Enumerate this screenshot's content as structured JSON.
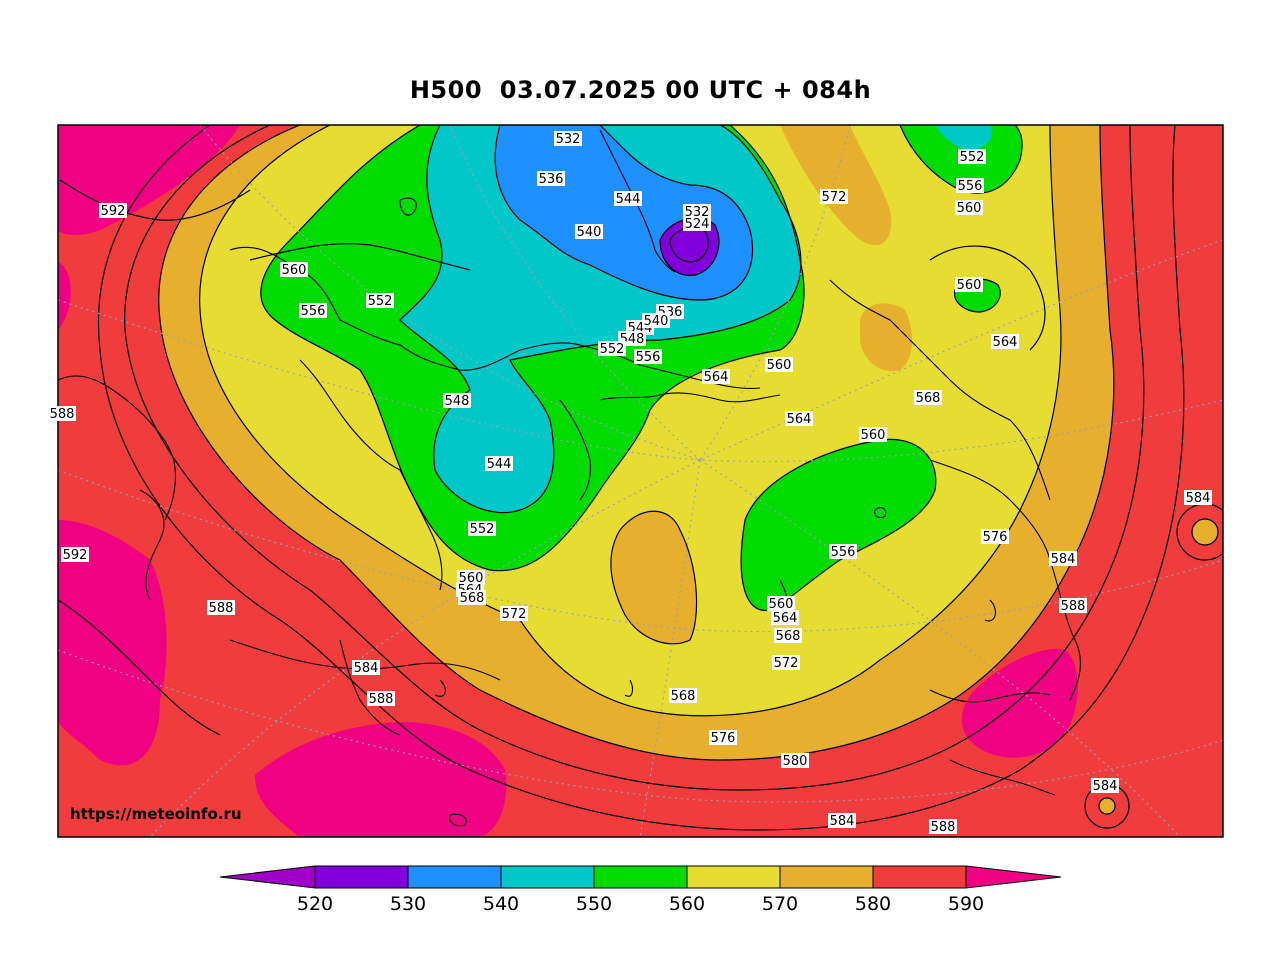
{
  "title": "H500  03.07.2025 00 UTC + 084h",
  "watermark": "https://meteoinfo.ru",
  "colorbar": {
    "ticks": [
      "520",
      "530",
      "540",
      "550",
      "560",
      "570",
      "580",
      "590"
    ],
    "colors": [
      "#a000c8",
      "#8200dc",
      "#1e90ff",
      "#00c8c8",
      "#00dc00",
      "#e6dc32",
      "#e6af2d",
      "#f03c3c",
      "#f00082"
    ]
  },
  "contour_labels": [
    "532",
    "536",
    "544",
    "540",
    "532",
    "524",
    "552",
    "556",
    "560",
    "572",
    "592",
    "560",
    "556",
    "552",
    "536",
    "544",
    "540",
    "548",
    "552",
    "556",
    "560",
    "560",
    "564",
    "564",
    "548",
    "544",
    "564",
    "568",
    "560",
    "552",
    "560",
    "564",
    "568",
    "572",
    "556",
    "592",
    "588",
    "584",
    "588",
    "576",
    "584",
    "584",
    "588",
    "560",
    "564",
    "568",
    "572",
    "568",
    "576",
    "580",
    "584",
    "588",
    "584",
    "588"
  ]
}
